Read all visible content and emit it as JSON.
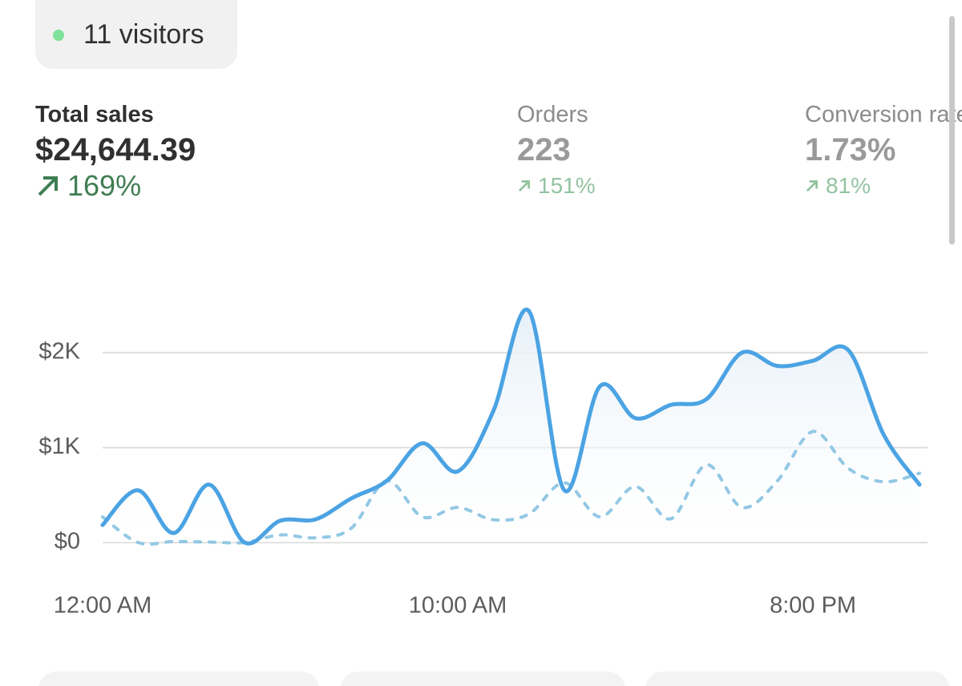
{
  "visitors": "11 visitors",
  "metrics": [
    {
      "label": "Total sales",
      "value": "$24,644.39",
      "change": "169%"
    },
    {
      "label": "Orders",
      "value": "223",
      "change": "151%"
    },
    {
      "label": "Conversion rate",
      "value": "1.73%",
      "change": "81%"
    }
  ],
  "chart_data": {
    "type": "line",
    "categories": [
      "12:00 AM",
      null,
      null,
      null,
      null,
      null,
      null,
      null,
      null,
      null,
      "10:00 AM",
      null,
      null,
      null,
      null,
      null,
      null,
      null,
      null,
      null,
      "8:00 PM",
      null,
      null,
      null
    ],
    "series": [
      {
        "color": "#4ba3e3",
        "line_style": "solid",
        "fill_area": true,
        "values": [
          185,
          550,
          100,
          610,
          0,
          230,
          245,
          465,
          650,
          1045,
          750,
          1385,
          2440,
          550,
          1645,
          1310,
          1450,
          1510,
          2000,
          1860,
          1915,
          2025,
          1130,
          610
        ]
      },
      {
        "color": "#92c8e4",
        "line_style": "dashed",
        "fill_area": false,
        "values": [
          270,
          0,
          10,
          5,
          0,
          80,
          50,
          150,
          650,
          270,
          370,
          240,
          300,
          630,
          270,
          590,
          250,
          820,
          370,
          650,
          1170,
          780,
          640,
          730
        ]
      }
    ],
    "ylim": [
      -250,
      2600
    ],
    "yticks": [
      {
        "value": 0,
        "label": "$0"
      },
      {
        "value": 1000,
        "label": "$1K"
      },
      {
        "value": 2000,
        "label": "$2K"
      }
    ],
    "grid": true
  }
}
